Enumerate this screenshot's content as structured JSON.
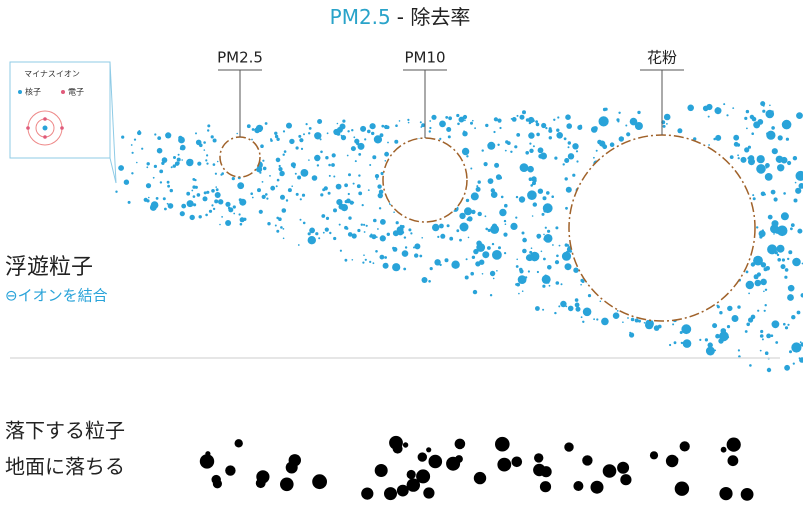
{
  "title": {
    "highlight": "PM2.5",
    "rest": "- 除去率"
  },
  "particles": [
    {
      "label": "PM2.5"
    },
    {
      "label": "PM10"
    },
    {
      "label": "花粉"
    }
  ],
  "inset": {
    "title": "マイナスイオン",
    "legend": [
      "核子",
      "電子"
    ]
  },
  "floating": {
    "label": "浮遊粒子",
    "sublabel": "⊖イオンを結合"
  },
  "falling": {
    "label": "落下する粒子",
    "sublabel": "地面に落ちる"
  }
}
